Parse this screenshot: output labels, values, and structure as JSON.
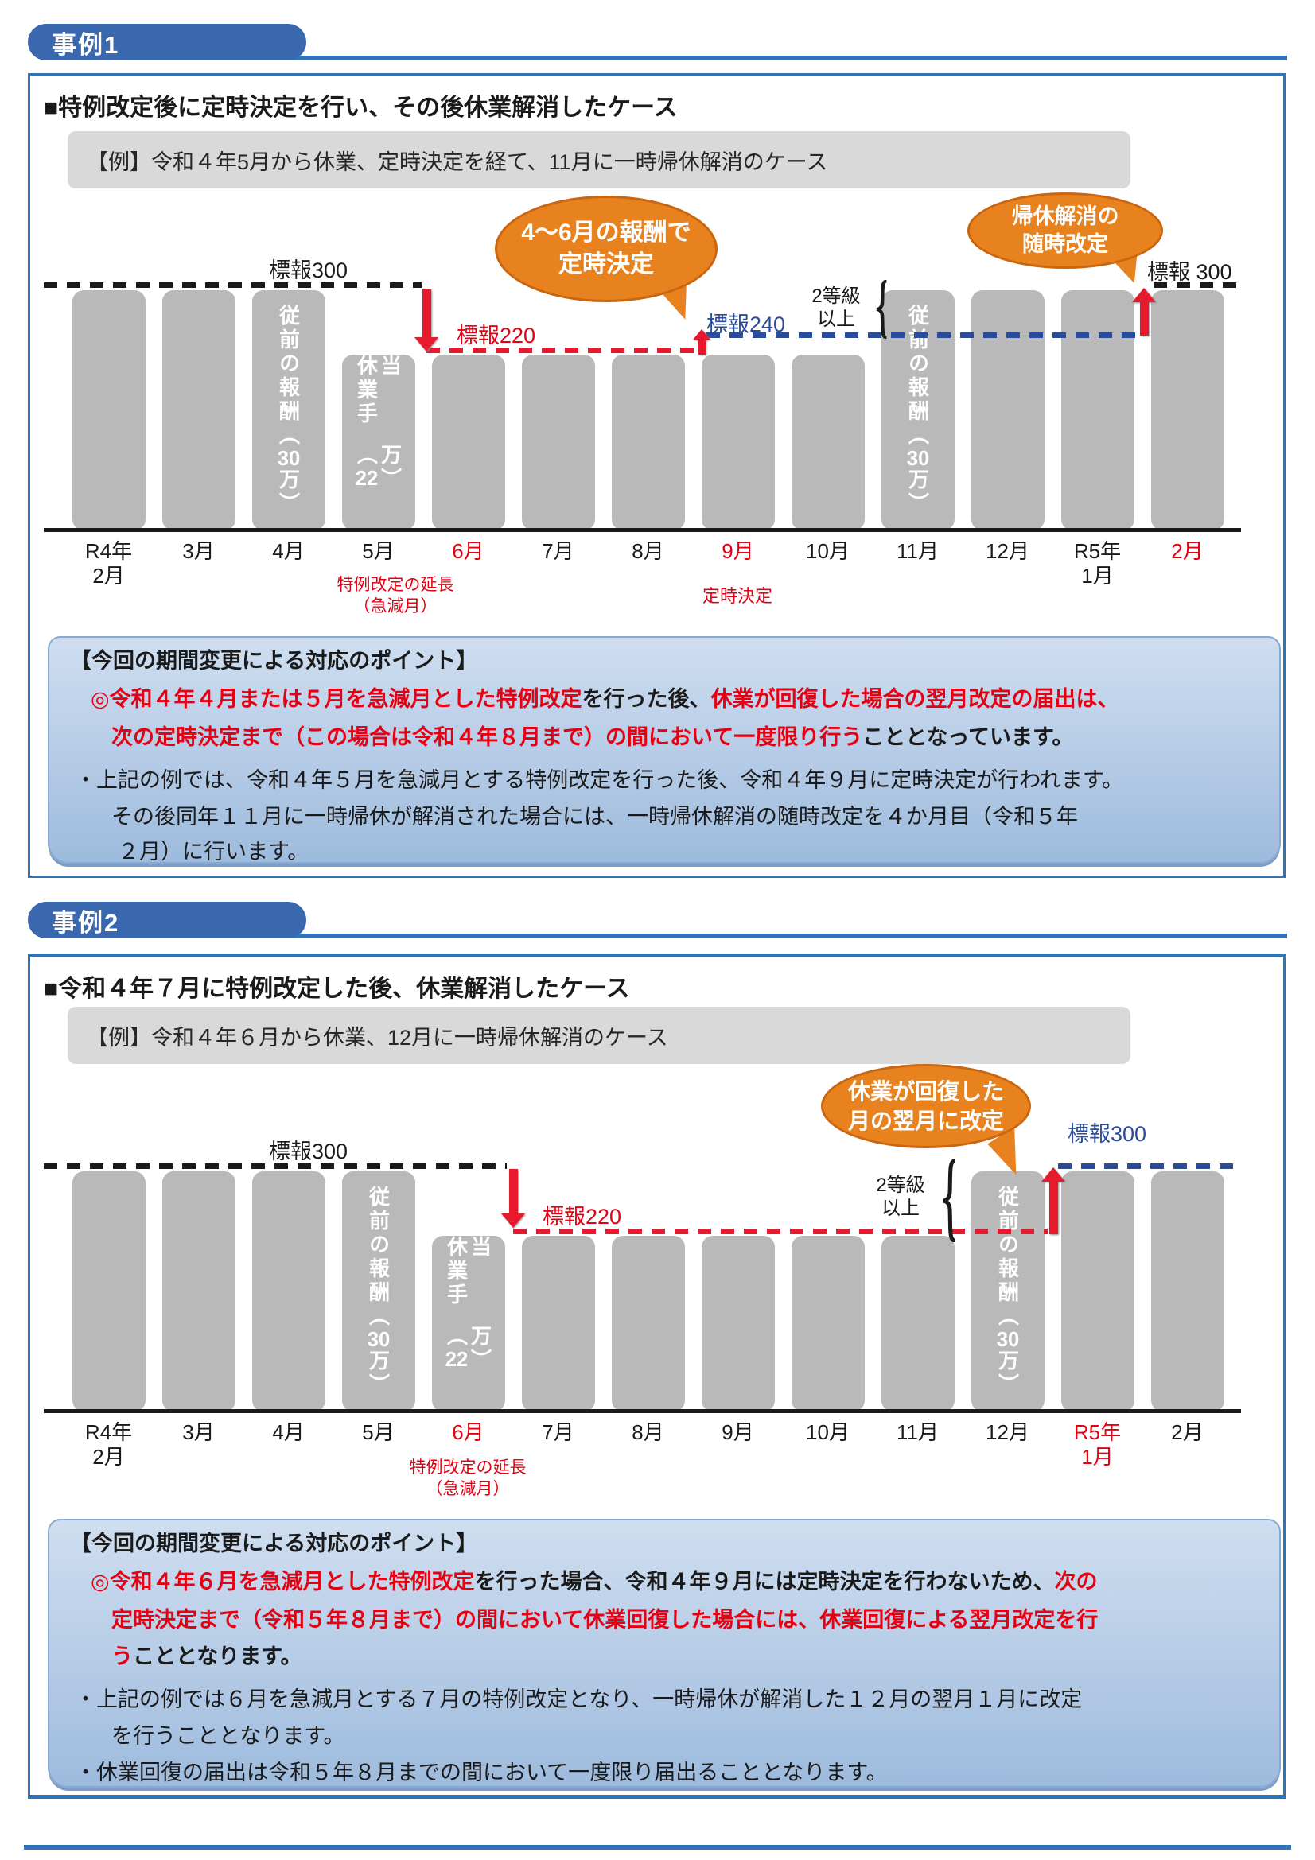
{
  "cases": [
    {
      "pill": "事例1",
      "heading": "■特例改定後に定時決定を行い、その後休業解消したケース",
      "example": "【例】令和４年5月から休業、定時決定を経て、11月に一時帰休解消のケース",
      "points": {
        "header": "【今回の期間変更による対応のポイント】",
        "lines": [
          {
            "runs": [
              {
                "t": "◎令和４年４月または５月を急減月とした特例改定",
                "c": "red"
              },
              {
                "t": "を行った後、",
                "c": "black"
              },
              {
                "t": "休業が回復した場合の翌月改定の届出は、",
                "c": "red"
              }
            ]
          },
          {
            "runs": [
              {
                "t": "次の定時決定まで（この場合は令和４年８月まで）の間において一度限り行う",
                "c": "red"
              },
              {
                "t": "こととなっています。",
                "c": "black"
              }
            ]
          },
          {
            "runs": [
              {
                "t": "・上記の例では、令和４年５月を急減月とする特例改定を行った後、令和４年９月に定時決定が行われます。",
                "c": "black"
              }
            ]
          },
          {
            "runs": [
              {
                "t": "その後同年１１月に一時帰休が解消された場合には、一時帰休解消の随時改定を４か月目（令和５年",
                "c": "black"
              }
            ]
          },
          {
            "runs": [
              {
                "t": "２月）に行います。",
                "c": "black"
              }
            ]
          }
        ]
      }
    },
    {
      "pill": "事例2",
      "heading": "■令和４年７月に特例改定した後、休業解消したケース",
      "example": "【例】令和４年６月から休業、12月に一時帰休解消のケース",
      "points": {
        "header": "【今回の期間変更による対応のポイント】",
        "lines": [
          {
            "runs": [
              {
                "t": "◎令和４年６月を急減月とした特例改定",
                "c": "red"
              },
              {
                "t": "を行った場合、令和４年９月には定時決定を行わないため、",
                "c": "black"
              },
              {
                "t": "次の",
                "c": "red"
              }
            ]
          },
          {
            "runs": [
              {
                "t": "定時決定まで（令和５年８月まで）の間において休業回復した場合には、休業回復による翌月改定を行",
                "c": "red"
              }
            ]
          },
          {
            "runs": [
              {
                "t": "う",
                "c": "red"
              },
              {
                "t": "こととなります。",
                "c": "black"
              }
            ]
          },
          {
            "runs": [
              {
                "t": "・上記の例では６月を急減月とする７月の特例改定となり、一時帰休が解消した１２月の翌月１月に改定",
                "c": "black"
              }
            ]
          },
          {
            "runs": [
              {
                "t": "を行うこととなります。",
                "c": "black"
              }
            ]
          },
          {
            "runs": [
              {
                "t": "・休業回復の届出は令和５年８月までの間において一度限り届出ることとなります。",
                "c": "black"
              }
            ]
          }
        ]
      }
    }
  ],
  "chart_data": [
    {
      "type": "bar",
      "categories": [
        "R4年2月",
        "3月",
        "4月",
        "5月",
        "6月",
        "7月",
        "8月",
        "9月",
        "10月",
        "11月",
        "12月",
        "R5年1月",
        "2月"
      ],
      "values": [
        300,
        300,
        300,
        220,
        220,
        220,
        220,
        220,
        220,
        300,
        300,
        300,
        300
      ],
      "ylim": [
        0,
        300
      ],
      "months_display": [
        "R4年\n2月",
        "3月",
        "4月",
        "5月",
        "6月",
        "7月",
        "8月",
        "9月",
        "10月",
        "11月",
        "12月",
        "R5年\n1月",
        "2月"
      ],
      "red_month_indices": [
        4,
        7,
        12
      ],
      "bar_labels": [
        {
          "index": 2,
          "lines": [
            "従前の報酬",
            "（30万）"
          ]
        },
        {
          "index": 3,
          "lines": [
            "休業手当",
            "（22万）"
          ]
        },
        {
          "index": 9,
          "lines": [
            "従前の報酬",
            "（30万）"
          ]
        }
      ],
      "ref_left_label": "標報300",
      "ref_mid_label": "標報220",
      "ref_right_label": "標報240",
      "ref_far_right_label": "標報 300",
      "grade_note": "2等級\n以上",
      "bubble_1": "4～6月の報酬で\n定時決定",
      "bubble_2": "帰休解消の\n随時改定",
      "axis_note_1": "特例改定の延長\n（急減月）",
      "axis_note_2": "定時決定",
      "colors": {
        "bar": "#b9b9b9",
        "red_line": "#e8192c",
        "blue_line": "#2a4d9b",
        "black_line": "#1a1a1a"
      }
    },
    {
      "type": "bar",
      "categories": [
        "R4年2月",
        "3月",
        "4月",
        "5月",
        "6月",
        "7月",
        "8月",
        "9月",
        "10月",
        "11月",
        "12月",
        "R5年1月",
        "2月"
      ],
      "values": [
        300,
        300,
        300,
        300,
        220,
        220,
        220,
        220,
        220,
        220,
        300,
        300,
        300
      ],
      "ylim": [
        0,
        300
      ],
      "months_display": [
        "R4年\n2月",
        "3月",
        "4月",
        "5月",
        "6月",
        "7月",
        "8月",
        "9月",
        "10月",
        "11月",
        "12月",
        "R5年\n1月",
        "2月"
      ],
      "red_month_indices": [
        4,
        11
      ],
      "bar_labels": [
        {
          "index": 3,
          "lines": [
            "従前の報酬",
            "（30万）"
          ]
        },
        {
          "index": 4,
          "lines": [
            "休業手当",
            "（22万）"
          ]
        },
        {
          "index": 10,
          "lines": [
            "従前の報酬",
            "（30万）"
          ]
        }
      ],
      "ref_left_label": "標報300",
      "ref_mid_label": "標報220",
      "ref_right_label": "標報300",
      "grade_note": "2等級\n以上",
      "bubble_1": "休業が回復した\n月の翌月に改定",
      "axis_note_1": "特例改定の延長\n（急減月）",
      "colors": {
        "bar": "#b9b9b9",
        "red_line": "#e8192c",
        "blue_line": "#2a4d9b",
        "black_line": "#1a1a1a"
      }
    }
  ]
}
